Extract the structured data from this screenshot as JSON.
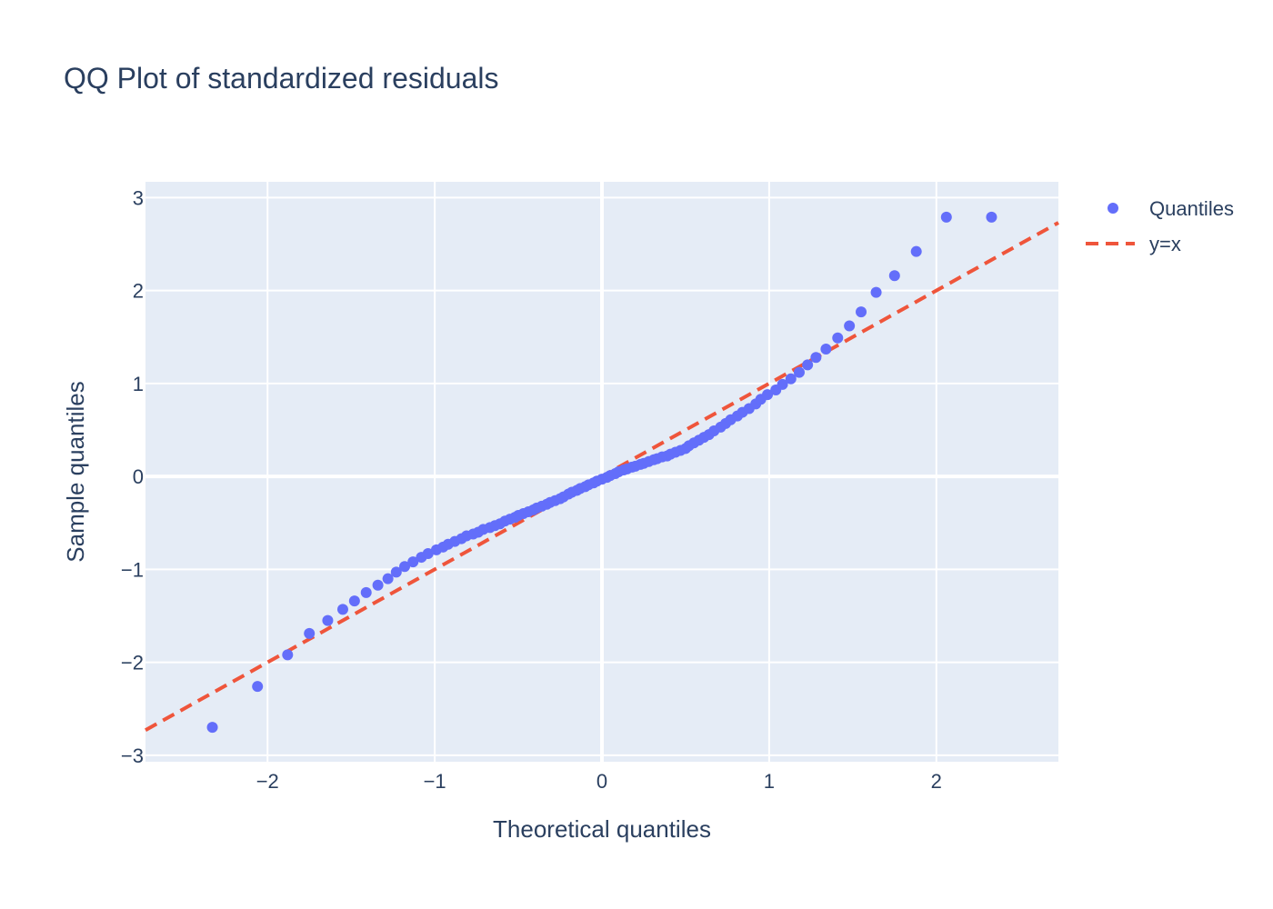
{
  "chart_data": {
    "type": "scatter",
    "title": "QQ Plot of standardized residuals",
    "xlabel": "Theoretical quantiles",
    "ylabel": "Sample quantiles",
    "xlim": [
      -2.73,
      2.73
    ],
    "ylim": [
      -3.07,
      3.17
    ],
    "x_ticks": [
      -2,
      -1,
      0,
      1,
      2
    ],
    "y_ticks": [
      -3,
      -2,
      -1,
      0,
      1,
      2,
      3
    ],
    "x_tick_labels": [
      "−2",
      "−1",
      "0",
      "1",
      "2"
    ],
    "y_tick_labels": [
      "−3",
      "−2",
      "−1",
      "0",
      "1",
      "2",
      "3"
    ],
    "grid": true,
    "legend_position": "top-right",
    "colors": {
      "plot_bg": "#e5ecf6",
      "grid": "#ffffff",
      "points": "#636efa",
      "reference_line": "#ef553b",
      "text": "#2a3f5f"
    },
    "series": [
      {
        "name": "Quantiles",
        "mode": "markers",
        "points": [
          [
            -2.33,
            -2.7
          ],
          [
            -2.06,
            -2.26
          ],
          [
            -1.88,
            -1.92
          ],
          [
            -1.75,
            -1.69
          ],
          [
            -1.64,
            -1.55
          ],
          [
            -1.55,
            -1.43
          ],
          [
            -1.48,
            -1.34
          ],
          [
            -1.41,
            -1.25
          ],
          [
            -1.34,
            -1.17
          ],
          [
            -1.28,
            -1.1
          ],
          [
            -1.23,
            -1.03
          ],
          [
            -1.18,
            -0.97
          ],
          [
            -1.13,
            -0.92
          ],
          [
            -1.08,
            -0.87
          ],
          [
            -1.04,
            -0.83
          ],
          [
            -0.99,
            -0.79
          ],
          [
            -0.95,
            -0.76
          ],
          [
            -0.92,
            -0.73
          ],
          [
            -0.88,
            -0.7
          ],
          [
            -0.84,
            -0.67
          ],
          [
            -0.81,
            -0.64
          ],
          [
            -0.77,
            -0.62
          ],
          [
            -0.74,
            -0.6
          ],
          [
            -0.71,
            -0.57
          ],
          [
            -0.67,
            -0.55
          ],
          [
            -0.64,
            -0.53
          ],
          [
            -0.61,
            -0.51
          ],
          [
            -0.58,
            -0.48
          ],
          [
            -0.55,
            -0.46
          ],
          [
            -0.52,
            -0.44
          ],
          [
            -0.5,
            -0.42
          ],
          [
            -0.47,
            -0.4
          ],
          [
            -0.44,
            -0.38
          ],
          [
            -0.41,
            -0.36
          ],
          [
            -0.39,
            -0.34
          ],
          [
            -0.36,
            -0.32
          ],
          [
            -0.33,
            -0.3
          ],
          [
            -0.31,
            -0.28
          ],
          [
            -0.28,
            -0.26
          ],
          [
            -0.25,
            -0.24
          ],
          [
            -0.23,
            -0.22
          ],
          [
            -0.2,
            -0.19
          ],
          [
            -0.18,
            -0.17
          ],
          [
            -0.15,
            -0.15
          ],
          [
            -0.13,
            -0.13
          ],
          [
            -0.1,
            -0.11
          ],
          [
            -0.08,
            -0.09
          ],
          [
            -0.05,
            -0.07
          ],
          [
            -0.03,
            -0.05
          ],
          [
            0.0,
            -0.03
          ],
          [
            0.03,
            -0.01
          ],
          [
            0.05,
            0.01
          ],
          [
            0.08,
            0.03
          ],
          [
            0.1,
            0.05
          ],
          [
            0.13,
            0.07
          ],
          [
            0.15,
            0.08
          ],
          [
            0.18,
            0.1
          ],
          [
            0.2,
            0.11
          ],
          [
            0.23,
            0.13
          ],
          [
            0.25,
            0.14
          ],
          [
            0.28,
            0.16
          ],
          [
            0.31,
            0.18
          ],
          [
            0.33,
            0.19
          ],
          [
            0.36,
            0.21
          ],
          [
            0.39,
            0.22
          ],
          [
            0.41,
            0.24
          ],
          [
            0.44,
            0.26
          ],
          [
            0.47,
            0.28
          ],
          [
            0.5,
            0.3
          ],
          [
            0.52,
            0.33
          ],
          [
            0.55,
            0.36
          ],
          [
            0.58,
            0.39
          ],
          [
            0.61,
            0.42
          ],
          [
            0.64,
            0.45
          ],
          [
            0.67,
            0.49
          ],
          [
            0.71,
            0.53
          ],
          [
            0.74,
            0.57
          ],
          [
            0.77,
            0.61
          ],
          [
            0.81,
            0.65
          ],
          [
            0.84,
            0.69
          ],
          [
            0.88,
            0.73
          ],
          [
            0.92,
            0.78
          ],
          [
            0.95,
            0.83
          ],
          [
            0.99,
            0.88
          ],
          [
            1.04,
            0.93
          ],
          [
            1.08,
            0.99
          ],
          [
            1.13,
            1.05
          ],
          [
            1.18,
            1.12
          ],
          [
            1.23,
            1.2
          ],
          [
            1.28,
            1.28
          ],
          [
            1.34,
            1.37
          ],
          [
            1.41,
            1.49
          ],
          [
            1.48,
            1.62
          ],
          [
            1.55,
            1.77
          ],
          [
            1.64,
            1.98
          ],
          [
            1.75,
            2.16
          ],
          [
            1.88,
            2.42
          ],
          [
            2.06,
            2.79
          ],
          [
            2.33,
            2.79
          ]
        ]
      },
      {
        "name": "y=x",
        "mode": "lines",
        "dash": "dash",
        "points": [
          [
            -2.73,
            -2.73
          ],
          [
            2.73,
            2.73
          ]
        ]
      }
    ]
  }
}
